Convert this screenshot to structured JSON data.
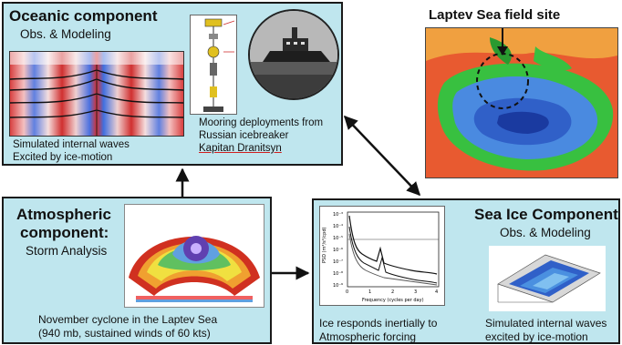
{
  "oceanic": {
    "title": "Oceanic component",
    "subtitle": "Obs. & Modeling",
    "caption_waves": [
      "Simulated internal waves",
      "Excited by ice-motion"
    ],
    "caption_mooring": [
      "Mooring deployments from",
      "Russian icebreaker",
      "Kapitan Dranitsyn"
    ]
  },
  "laptev": {
    "title": "Laptev Sea field site"
  },
  "atmospheric": {
    "title_lines": [
      "Atmospheric",
      "component:"
    ],
    "subtitle": "Storm Analysis",
    "caption": [
      "November cyclone in the Laptev Sea",
      "(940 mb, sustained winds of 60 kts)"
    ]
  },
  "seaice": {
    "title": "Sea Ice Component",
    "subtitle": "Obs. & Modeling",
    "caption_spectrum": [
      "Ice responds inertially to",
      "Atmospheric forcing"
    ],
    "caption_model": [
      "Simulated internal waves",
      "excited by ice-motion"
    ],
    "spectrum_yticks": [
      "10⁻³",
      "10⁻⁴",
      "10⁻⁵",
      "10⁻⁶",
      "10⁻⁷",
      "10⁻⁸",
      "10⁻⁹"
    ],
    "spectrum_xticks": [
      "0",
      "1",
      "2",
      "3",
      "4"
    ],
    "spectrum_xlabel": "Frequency (cycles per day)",
    "spectrum_ylabel": "PSD (m²/s²/cpd)"
  },
  "colors": {
    "panel_bg": "#bfe6ee",
    "border": "#1a1a1a",
    "arrow": "#111111",
    "underline": "#d02020"
  }
}
